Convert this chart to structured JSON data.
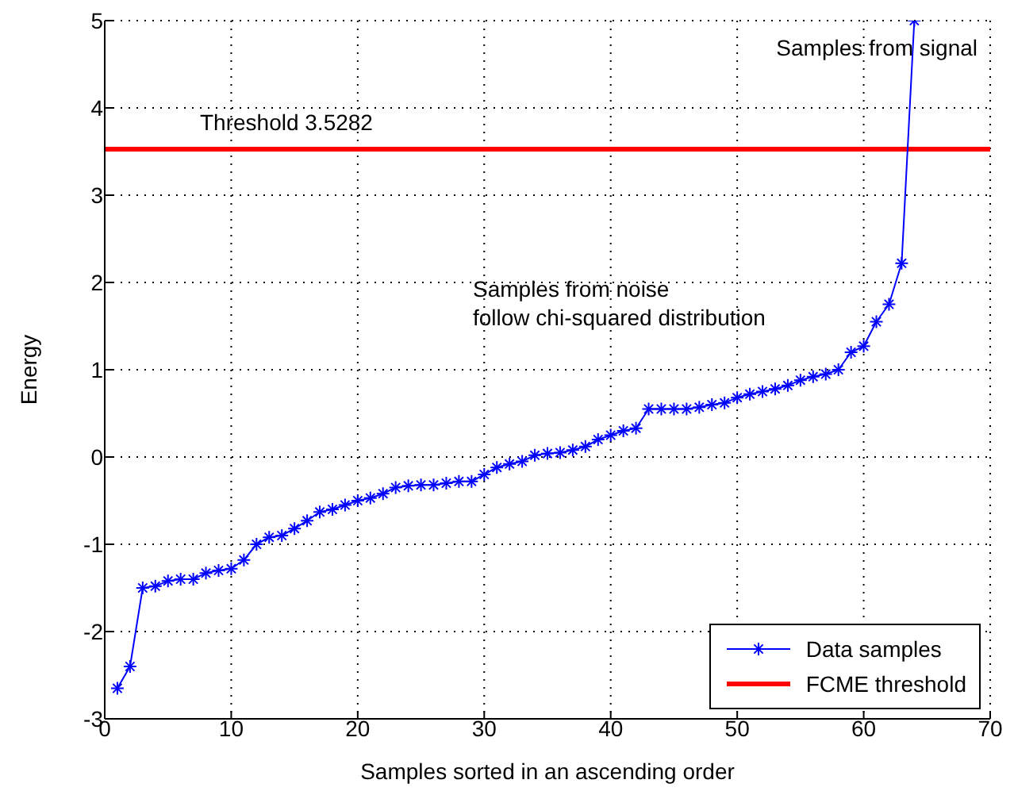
{
  "chart_data": {
    "type": "line",
    "xlabel": "Samples sorted in an ascending order",
    "ylabel": "Energy",
    "x": [
      1,
      2,
      3,
      4,
      5,
      6,
      7,
      8,
      9,
      10,
      11,
      12,
      13,
      14,
      15,
      16,
      17,
      18,
      19,
      20,
      21,
      22,
      23,
      24,
      25,
      26,
      27,
      28,
      29,
      30,
      31,
      32,
      33,
      34,
      35,
      36,
      37,
      38,
      39,
      40,
      41,
      42,
      43,
      44,
      45,
      46,
      47,
      48,
      49,
      50,
      51,
      52,
      53,
      54,
      55,
      56,
      57,
      58,
      59,
      60,
      61,
      62,
      63,
      64
    ],
    "series": [
      {
        "name": "Data samples",
        "color": "#0000ff",
        "values": [
          -2.65,
          -2.4,
          -1.5,
          -1.48,
          -1.42,
          -1.4,
          -1.4,
          -1.33,
          -1.3,
          -1.28,
          -1.18,
          -1.0,
          -0.92,
          -0.9,
          -0.82,
          -0.73,
          -0.63,
          -0.6,
          -0.55,
          -0.5,
          -0.47,
          -0.42,
          -0.35,
          -0.33,
          -0.32,
          -0.32,
          -0.3,
          -0.28,
          -0.28,
          -0.2,
          -0.12,
          -0.08,
          -0.05,
          0.02,
          0.04,
          0.05,
          0.08,
          0.12,
          0.2,
          0.25,
          0.3,
          0.33,
          0.55,
          0.55,
          0.55,
          0.55,
          0.57,
          0.6,
          0.62,
          0.68,
          0.72,
          0.75,
          0.78,
          0.82,
          0.88,
          0.92,
          0.95,
          1.0,
          1.2,
          1.27,
          1.55,
          1.75,
          2.22,
          5.0
        ]
      }
    ],
    "ref_lines": [
      {
        "axis": "y",
        "value": 3.5282,
        "label": "FCME threshold",
        "color": "#ff0000"
      }
    ],
    "annotations": [
      "Threshold 3.5282",
      "Samples from signal",
      "Samples from noise\nfollow chi-squared distribution"
    ],
    "xlim": [
      0,
      70
    ],
    "xticks": [
      0,
      10,
      20,
      30,
      40,
      50,
      60,
      70
    ],
    "ylim": [
      -3,
      5
    ],
    "yticks": [
      -3,
      -2,
      -1,
      0,
      1,
      2,
      3,
      4,
      5
    ],
    "grid": true,
    "legend": "bottom right",
    "marker": "cross",
    "line_style": "solid"
  }
}
